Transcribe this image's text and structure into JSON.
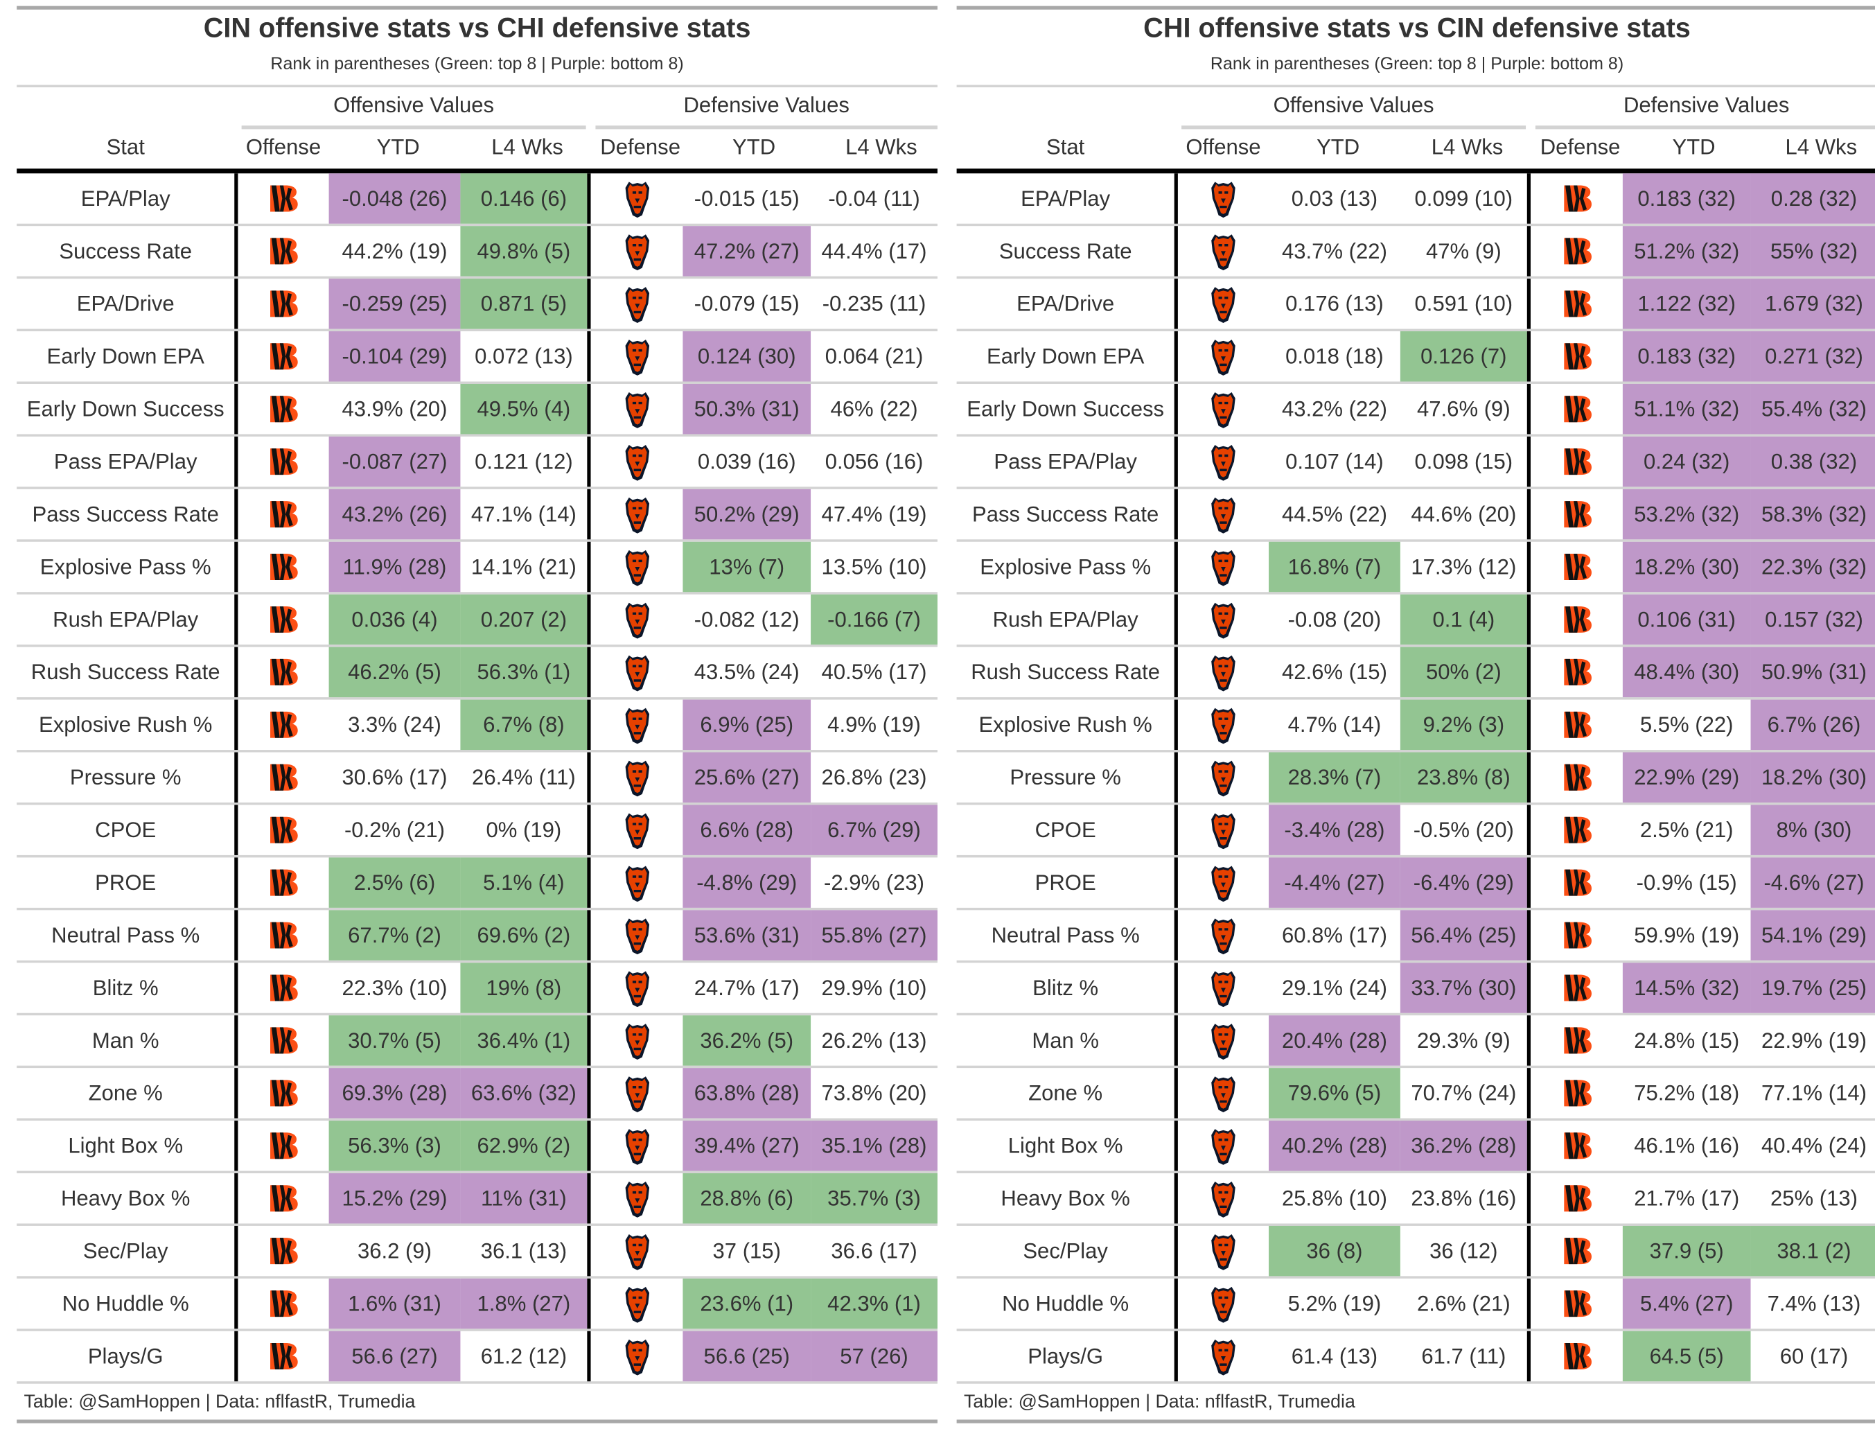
{
  "colors": {
    "green": "#93c592",
    "purple": "#bf98c9"
  },
  "icons": {
    "CIN": "bengals-logo-icon",
    "CHI": "bears-logo-icon"
  },
  "column_headers": {
    "stat": "Stat",
    "offense": "Offense",
    "ytd": "YTD",
    "l4": "L4 Wks",
    "defense": "Defense",
    "offensive_values": "Offensive Values",
    "defensive_values": "Defensive Values"
  },
  "subtitle": "Rank in parentheses (Green: top 8 | Purple: bottom 8)",
  "footer": "Table: @SamHoppen | Data: nflfastR, Trumedia",
  "panels": [
    {
      "title": "CIN offensive stats vs CHI defensive stats",
      "offense_team": "CIN",
      "defense_team": "CHI",
      "rows": [
        {
          "stat": "EPA/Play",
          "off_ytd": "-0.048 (26)",
          "off_l4": "0.146 (6)",
          "def_ytd": "-0.015 (15)",
          "def_l4": "-0.04 (11)"
        },
        {
          "stat": "Success Rate",
          "off_ytd": "44.2% (19)",
          "off_l4": "49.8% (5)",
          "def_ytd": "47.2% (27)",
          "def_l4": "44.4% (17)"
        },
        {
          "stat": "EPA/Drive",
          "off_ytd": "-0.259 (25)",
          "off_l4": "0.871 (5)",
          "def_ytd": "-0.079 (15)",
          "def_l4": "-0.235 (11)"
        },
        {
          "stat": "Early Down EPA",
          "off_ytd": "-0.104 (29)",
          "off_l4": "0.072 (13)",
          "def_ytd": "0.124 (30)",
          "def_l4": "0.064 (21)"
        },
        {
          "stat": "Early Down Success",
          "off_ytd": "43.9% (20)",
          "off_l4": "49.5% (4)",
          "def_ytd": "50.3% (31)",
          "def_l4": "46% (22)"
        },
        {
          "stat": "Pass EPA/Play",
          "off_ytd": "-0.087 (27)",
          "off_l4": "0.121 (12)",
          "def_ytd": "0.039 (16)",
          "def_l4": "0.056 (16)"
        },
        {
          "stat": "Pass Success Rate",
          "off_ytd": "43.2% (26)",
          "off_l4": "47.1% (14)",
          "def_ytd": "50.2% (29)",
          "def_l4": "47.4% (19)"
        },
        {
          "stat": "Explosive Pass %",
          "off_ytd": "11.9% (28)",
          "off_l4": "14.1% (21)",
          "def_ytd": "13% (7)",
          "def_l4": "13.5% (10)"
        },
        {
          "stat": "Rush EPA/Play",
          "off_ytd": "0.036 (4)",
          "off_l4": "0.207 (2)",
          "def_ytd": "-0.082 (12)",
          "def_l4": "-0.166 (7)"
        },
        {
          "stat": "Rush Success Rate",
          "off_ytd": "46.2% (5)",
          "off_l4": "56.3% (1)",
          "def_ytd": "43.5% (24)",
          "def_l4": "40.5% (17)"
        },
        {
          "stat": "Explosive Rush %",
          "off_ytd": "3.3% (24)",
          "off_l4": "6.7% (8)",
          "def_ytd": "6.9% (25)",
          "def_l4": "4.9% (19)"
        },
        {
          "stat": "Pressure %",
          "off_ytd": "30.6% (17)",
          "off_l4": "26.4% (11)",
          "def_ytd": "25.6% (27)",
          "def_l4": "26.8% (23)"
        },
        {
          "stat": "CPOE",
          "off_ytd": "-0.2% (21)",
          "off_l4": "0% (19)",
          "def_ytd": "6.6% (28)",
          "def_l4": "6.7% (29)"
        },
        {
          "stat": "PROE",
          "off_ytd": "2.5% (6)",
          "off_l4": "5.1% (4)",
          "def_ytd": "-4.8% (29)",
          "def_l4": "-2.9% (23)"
        },
        {
          "stat": "Neutral Pass %",
          "off_ytd": "67.7% (2)",
          "off_l4": "69.6% (2)",
          "def_ytd": "53.6% (31)",
          "def_l4": "55.8% (27)"
        },
        {
          "stat": "Blitz %",
          "off_ytd": "22.3% (10)",
          "off_l4": "19% (8)",
          "def_ytd": "24.7% (17)",
          "def_l4": "29.9% (10)"
        },
        {
          "stat": "Man %",
          "off_ytd": "30.7% (5)",
          "off_l4": "36.4% (1)",
          "def_ytd": "36.2% (5)",
          "def_l4": "26.2% (13)"
        },
        {
          "stat": "Zone %",
          "off_ytd": "69.3% (28)",
          "off_l4": "63.6% (32)",
          "def_ytd": "63.8% (28)",
          "def_l4": "73.8% (20)"
        },
        {
          "stat": "Light Box %",
          "off_ytd": "56.3% (3)",
          "off_l4": "62.9% (2)",
          "def_ytd": "39.4% (27)",
          "def_l4": "35.1% (28)"
        },
        {
          "stat": "Heavy Box %",
          "off_ytd": "15.2% (29)",
          "off_l4": "11% (31)",
          "def_ytd": "28.8% (6)",
          "def_l4": "35.7% (3)"
        },
        {
          "stat": "Sec/Play",
          "off_ytd": "36.2 (9)",
          "off_l4": "36.1 (13)",
          "def_ytd": "37 (15)",
          "def_l4": "36.6 (17)"
        },
        {
          "stat": "No Huddle %",
          "off_ytd": "1.6% (31)",
          "off_l4": "1.8% (27)",
          "def_ytd": "23.6% (1)",
          "def_l4": "42.3% (1)"
        },
        {
          "stat": "Plays/G",
          "off_ytd": "56.6 (27)",
          "off_l4": "61.2 (12)",
          "def_ytd": "56.6 (25)",
          "def_l4": "57 (26)"
        }
      ]
    },
    {
      "title": "CHI offensive stats vs CIN defensive stats",
      "offense_team": "CHI",
      "defense_team": "CIN",
      "rows": [
        {
          "stat": "EPA/Play",
          "off_ytd": "0.03 (13)",
          "off_l4": "0.099 (10)",
          "def_ytd": "0.183 (32)",
          "def_l4": "0.28 (32)"
        },
        {
          "stat": "Success Rate",
          "off_ytd": "43.7% (22)",
          "off_l4": "47% (9)",
          "def_ytd": "51.2% (32)",
          "def_l4": "55% (32)"
        },
        {
          "stat": "EPA/Drive",
          "off_ytd": "0.176 (13)",
          "off_l4": "0.591 (10)",
          "def_ytd": "1.122 (32)",
          "def_l4": "1.679 (32)"
        },
        {
          "stat": "Early Down EPA",
          "off_ytd": "0.018 (18)",
          "off_l4": "0.126 (7)",
          "def_ytd": "0.183 (32)",
          "def_l4": "0.271 (32)"
        },
        {
          "stat": "Early Down Success",
          "off_ytd": "43.2% (22)",
          "off_l4": "47.6% (9)",
          "def_ytd": "51.1% (32)",
          "def_l4": "55.4% (32)"
        },
        {
          "stat": "Pass EPA/Play",
          "off_ytd": "0.107 (14)",
          "off_l4": "0.098 (15)",
          "def_ytd": "0.24 (32)",
          "def_l4": "0.38 (32)"
        },
        {
          "stat": "Pass Success Rate",
          "off_ytd": "44.5% (22)",
          "off_l4": "44.6% (20)",
          "def_ytd": "53.2% (32)",
          "def_l4": "58.3% (32)"
        },
        {
          "stat": "Explosive Pass %",
          "off_ytd": "16.8% (7)",
          "off_l4": "17.3% (12)",
          "def_ytd": "18.2% (30)",
          "def_l4": "22.3% (32)"
        },
        {
          "stat": "Rush EPA/Play",
          "off_ytd": "-0.08 (20)",
          "off_l4": "0.1 (4)",
          "def_ytd": "0.106 (31)",
          "def_l4": "0.157 (32)"
        },
        {
          "stat": "Rush Success Rate",
          "off_ytd": "42.6% (15)",
          "off_l4": "50% (2)",
          "def_ytd": "48.4% (30)",
          "def_l4": "50.9% (31)"
        },
        {
          "stat": "Explosive Rush %",
          "off_ytd": "4.7% (14)",
          "off_l4": "9.2% (3)",
          "def_ytd": "5.5% (22)",
          "def_l4": "6.7% (26)"
        },
        {
          "stat": "Pressure %",
          "off_ytd": "28.3% (7)",
          "off_l4": "23.8% (8)",
          "def_ytd": "22.9% (29)",
          "def_l4": "18.2% (30)"
        },
        {
          "stat": "CPOE",
          "off_ytd": "-3.4% (28)",
          "off_l4": "-0.5% (20)",
          "def_ytd": "2.5% (21)",
          "def_l4": "8% (30)"
        },
        {
          "stat": "PROE",
          "off_ytd": "-4.4% (27)",
          "off_l4": "-6.4% (29)",
          "def_ytd": "-0.9% (15)",
          "def_l4": "-4.6% (27)"
        },
        {
          "stat": "Neutral Pass %",
          "off_ytd": "60.8% (17)",
          "off_l4": "56.4% (25)",
          "def_ytd": "59.9% (19)",
          "def_l4": "54.1% (29)"
        },
        {
          "stat": "Blitz %",
          "off_ytd": "29.1% (24)",
          "off_l4": "33.7% (30)",
          "def_ytd": "14.5% (32)",
          "def_l4": "19.7% (25)"
        },
        {
          "stat": "Man %",
          "off_ytd": "20.4% (28)",
          "off_l4": "29.3% (9)",
          "def_ytd": "24.8% (15)",
          "def_l4": "22.9% (19)"
        },
        {
          "stat": "Zone %",
          "off_ytd": "79.6% (5)",
          "off_l4": "70.7% (24)",
          "def_ytd": "75.2% (18)",
          "def_l4": "77.1% (14)"
        },
        {
          "stat": "Light Box %",
          "off_ytd": "40.2% (28)",
          "off_l4": "36.2% (28)",
          "def_ytd": "46.1% (16)",
          "def_l4": "40.4% (24)"
        },
        {
          "stat": "Heavy Box %",
          "off_ytd": "25.8% (10)",
          "off_l4": "23.8% (16)",
          "def_ytd": "21.7% (17)",
          "def_l4": "25% (13)"
        },
        {
          "stat": "Sec/Play",
          "off_ytd": "36 (8)",
          "off_l4": "36 (12)",
          "def_ytd": "37.9 (5)",
          "def_l4": "38.1 (2)"
        },
        {
          "stat": "No Huddle %",
          "off_ytd": "5.2% (19)",
          "off_l4": "2.6% (21)",
          "def_ytd": "5.4% (27)",
          "def_l4": "7.4% (13)"
        },
        {
          "stat": "Plays/G",
          "off_ytd": "61.4 (13)",
          "off_l4": "61.7 (11)",
          "def_ytd": "64.5 (5)",
          "def_l4": "60 (17)"
        }
      ]
    }
  ]
}
